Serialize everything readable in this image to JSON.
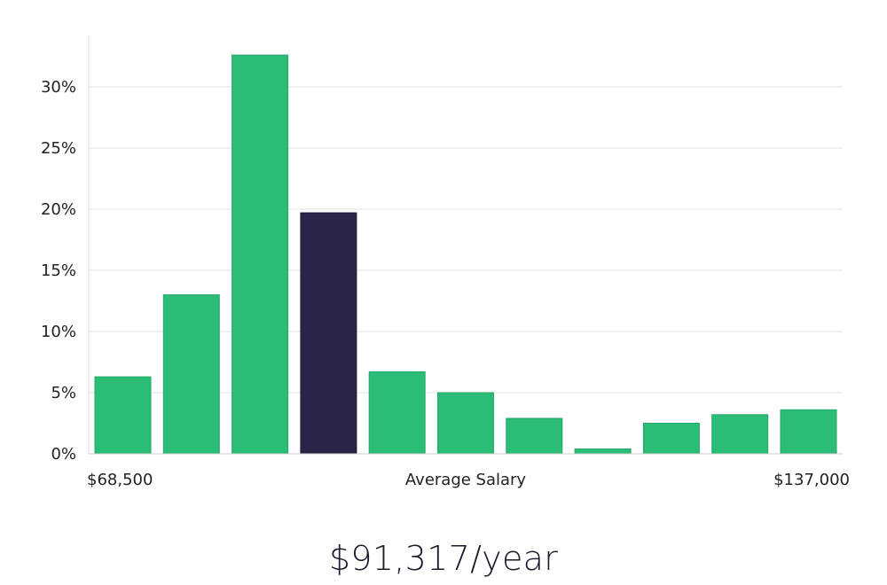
{
  "chart_data": {
    "type": "bar",
    "xlabel": "Average Salary",
    "x_min_label": "$68,500",
    "x_max_label": "$137,000",
    "ylim": [
      0,
      34
    ],
    "yticks": [
      0,
      5,
      10,
      15,
      20,
      25,
      30
    ],
    "ytick_labels": [
      "0%",
      "5%",
      "10%",
      "15%",
      "20%",
      "25%",
      "30%"
    ],
    "grid": true,
    "values": [
      6.3,
      13.0,
      32.6,
      19.7,
      6.7,
      5.0,
      2.9,
      0.4,
      2.5,
      3.2,
      3.6
    ],
    "highlight_index": 3,
    "bar_color": "#2bbd77",
    "highlight_color": "#2a2547"
  },
  "summary": {
    "salary_text": "$91,317/year"
  }
}
